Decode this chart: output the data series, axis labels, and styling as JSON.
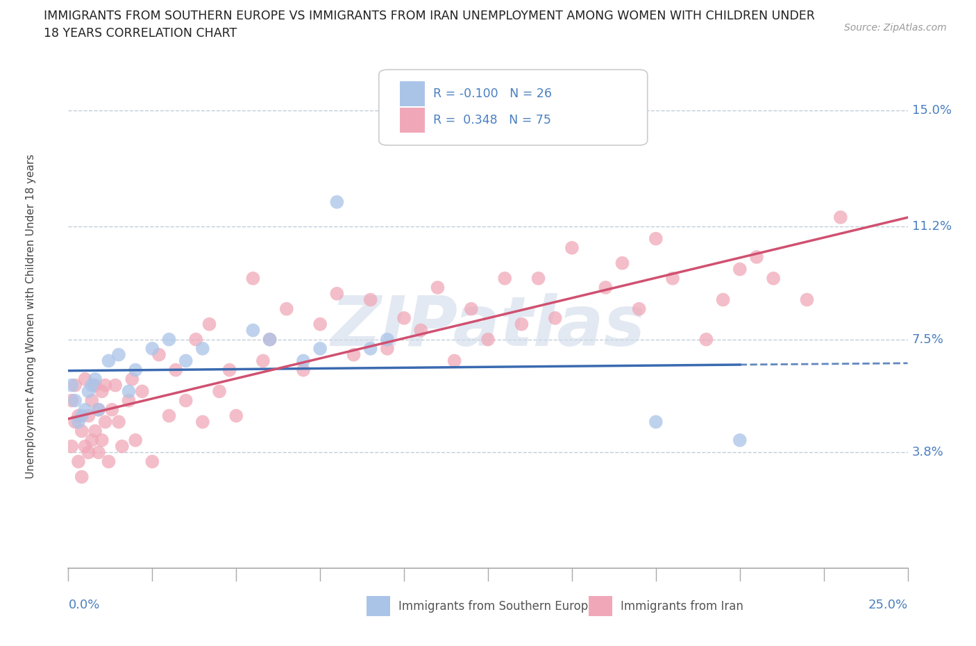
{
  "title_line1": "IMMIGRANTS FROM SOUTHERN EUROPE VS IMMIGRANTS FROM IRAN UNEMPLOYMENT AMONG WOMEN WITH CHILDREN UNDER",
  "title_line2": "18 YEARS CORRELATION CHART",
  "source": "Source: ZipAtlas.com",
  "ylabel": "Unemployment Among Women with Children Under 18 years",
  "y_ticks": [
    0.038,
    0.075,
    0.112,
    0.15
  ],
  "y_tick_labels": [
    "3.8%",
    "7.5%",
    "11.2%",
    "15.0%"
  ],
  "xlim": [
    0.0,
    0.25
  ],
  "ylim": [
    0.0,
    0.165
  ],
  "watermark": "ZIPatlas",
  "legend_r1": "R = -0.100",
  "legend_n1": "N = 26",
  "legend_r2": "R =  0.348",
  "legend_n2": "N = 75",
  "color_blue": "#aac4e8",
  "color_pink": "#f0a8b8",
  "color_blue_line": "#3a6ab0",
  "color_pink_line": "#d05070",
  "color_text_blue": "#4a7fc0",
  "color_grid": "#c0ccd8",
  "se_x": [
    0.001,
    0.002,
    0.003,
    0.004,
    0.005,
    0.006,
    0.007,
    0.008,
    0.009,
    0.012,
    0.015,
    0.018,
    0.02,
    0.025,
    0.03,
    0.035,
    0.04,
    0.055,
    0.06,
    0.07,
    0.075,
    0.08,
    0.09,
    0.095,
    0.175,
    0.2
  ],
  "se_y": [
    0.06,
    0.055,
    0.048,
    0.05,
    0.052,
    0.058,
    0.06,
    0.062,
    0.052,
    0.068,
    0.07,
    0.058,
    0.065,
    0.072,
    0.075,
    0.068,
    0.072,
    0.078,
    0.075,
    0.068,
    0.072,
    0.12,
    0.072,
    0.075,
    0.048,
    0.042
  ],
  "iran_x": [
    0.001,
    0.001,
    0.002,
    0.002,
    0.003,
    0.003,
    0.004,
    0.004,
    0.005,
    0.005,
    0.006,
    0.006,
    0.007,
    0.007,
    0.008,
    0.008,
    0.009,
    0.009,
    0.01,
    0.01,
    0.011,
    0.011,
    0.012,
    0.013,
    0.014,
    0.015,
    0.016,
    0.018,
    0.019,
    0.02,
    0.022,
    0.025,
    0.027,
    0.03,
    0.032,
    0.035,
    0.038,
    0.04,
    0.042,
    0.045,
    0.048,
    0.05,
    0.055,
    0.058,
    0.06,
    0.065,
    0.07,
    0.075,
    0.08,
    0.085,
    0.09,
    0.095,
    0.1,
    0.105,
    0.11,
    0.115,
    0.12,
    0.125,
    0.13,
    0.135,
    0.14,
    0.145,
    0.15,
    0.16,
    0.165,
    0.17,
    0.175,
    0.18,
    0.19,
    0.195,
    0.2,
    0.205,
    0.21,
    0.22,
    0.23
  ],
  "iran_y": [
    0.055,
    0.04,
    0.048,
    0.06,
    0.05,
    0.035,
    0.045,
    0.03,
    0.062,
    0.04,
    0.05,
    0.038,
    0.055,
    0.042,
    0.06,
    0.045,
    0.052,
    0.038,
    0.058,
    0.042,
    0.06,
    0.048,
    0.035,
    0.052,
    0.06,
    0.048,
    0.04,
    0.055,
    0.062,
    0.042,
    0.058,
    0.035,
    0.07,
    0.05,
    0.065,
    0.055,
    0.075,
    0.048,
    0.08,
    0.058,
    0.065,
    0.05,
    0.095,
    0.068,
    0.075,
    0.085,
    0.065,
    0.08,
    0.09,
    0.07,
    0.088,
    0.072,
    0.082,
    0.078,
    0.092,
    0.068,
    0.085,
    0.075,
    0.095,
    0.08,
    0.095,
    0.082,
    0.105,
    0.092,
    0.1,
    0.085,
    0.108,
    0.095,
    0.075,
    0.088,
    0.098,
    0.102,
    0.095,
    0.088,
    0.115
  ]
}
